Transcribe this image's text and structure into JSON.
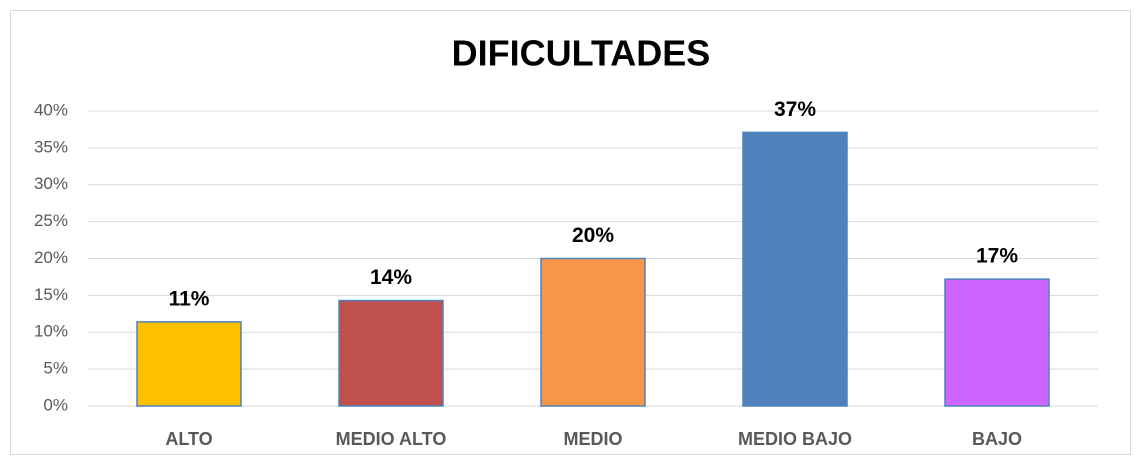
{
  "chart_data": {
    "type": "bar",
    "title": "DIFICULTADES",
    "categories": [
      "ALTO",
      "MEDIO ALTO",
      "MEDIO",
      "MEDIO BAJO",
      "BAJO"
    ],
    "values": [
      11.4,
      14.3,
      20,
      37.1,
      17.2
    ],
    "value_labels": [
      "11%",
      "14%",
      "20%",
      "37%",
      "17%"
    ],
    "colors": [
      "#ffc000",
      "#c0504d",
      "#f79646",
      "#4f81bd",
      "#cc66ff"
    ],
    "ylim": [
      0,
      40
    ],
    "yticks": [
      {
        "value": 0,
        "label": "0%"
      },
      {
        "value": 5,
        "label": "5%"
      },
      {
        "value": 10,
        "label": "10%"
      },
      {
        "value": 15,
        "label": "15%"
      },
      {
        "value": 20,
        "label": "20%"
      },
      {
        "value": 25,
        "label": "25%"
      },
      {
        "value": 30,
        "label": "30%"
      },
      {
        "value": 35,
        "label": "35%"
      },
      {
        "value": 40,
        "label": "40%"
      }
    ],
    "grid": true
  }
}
